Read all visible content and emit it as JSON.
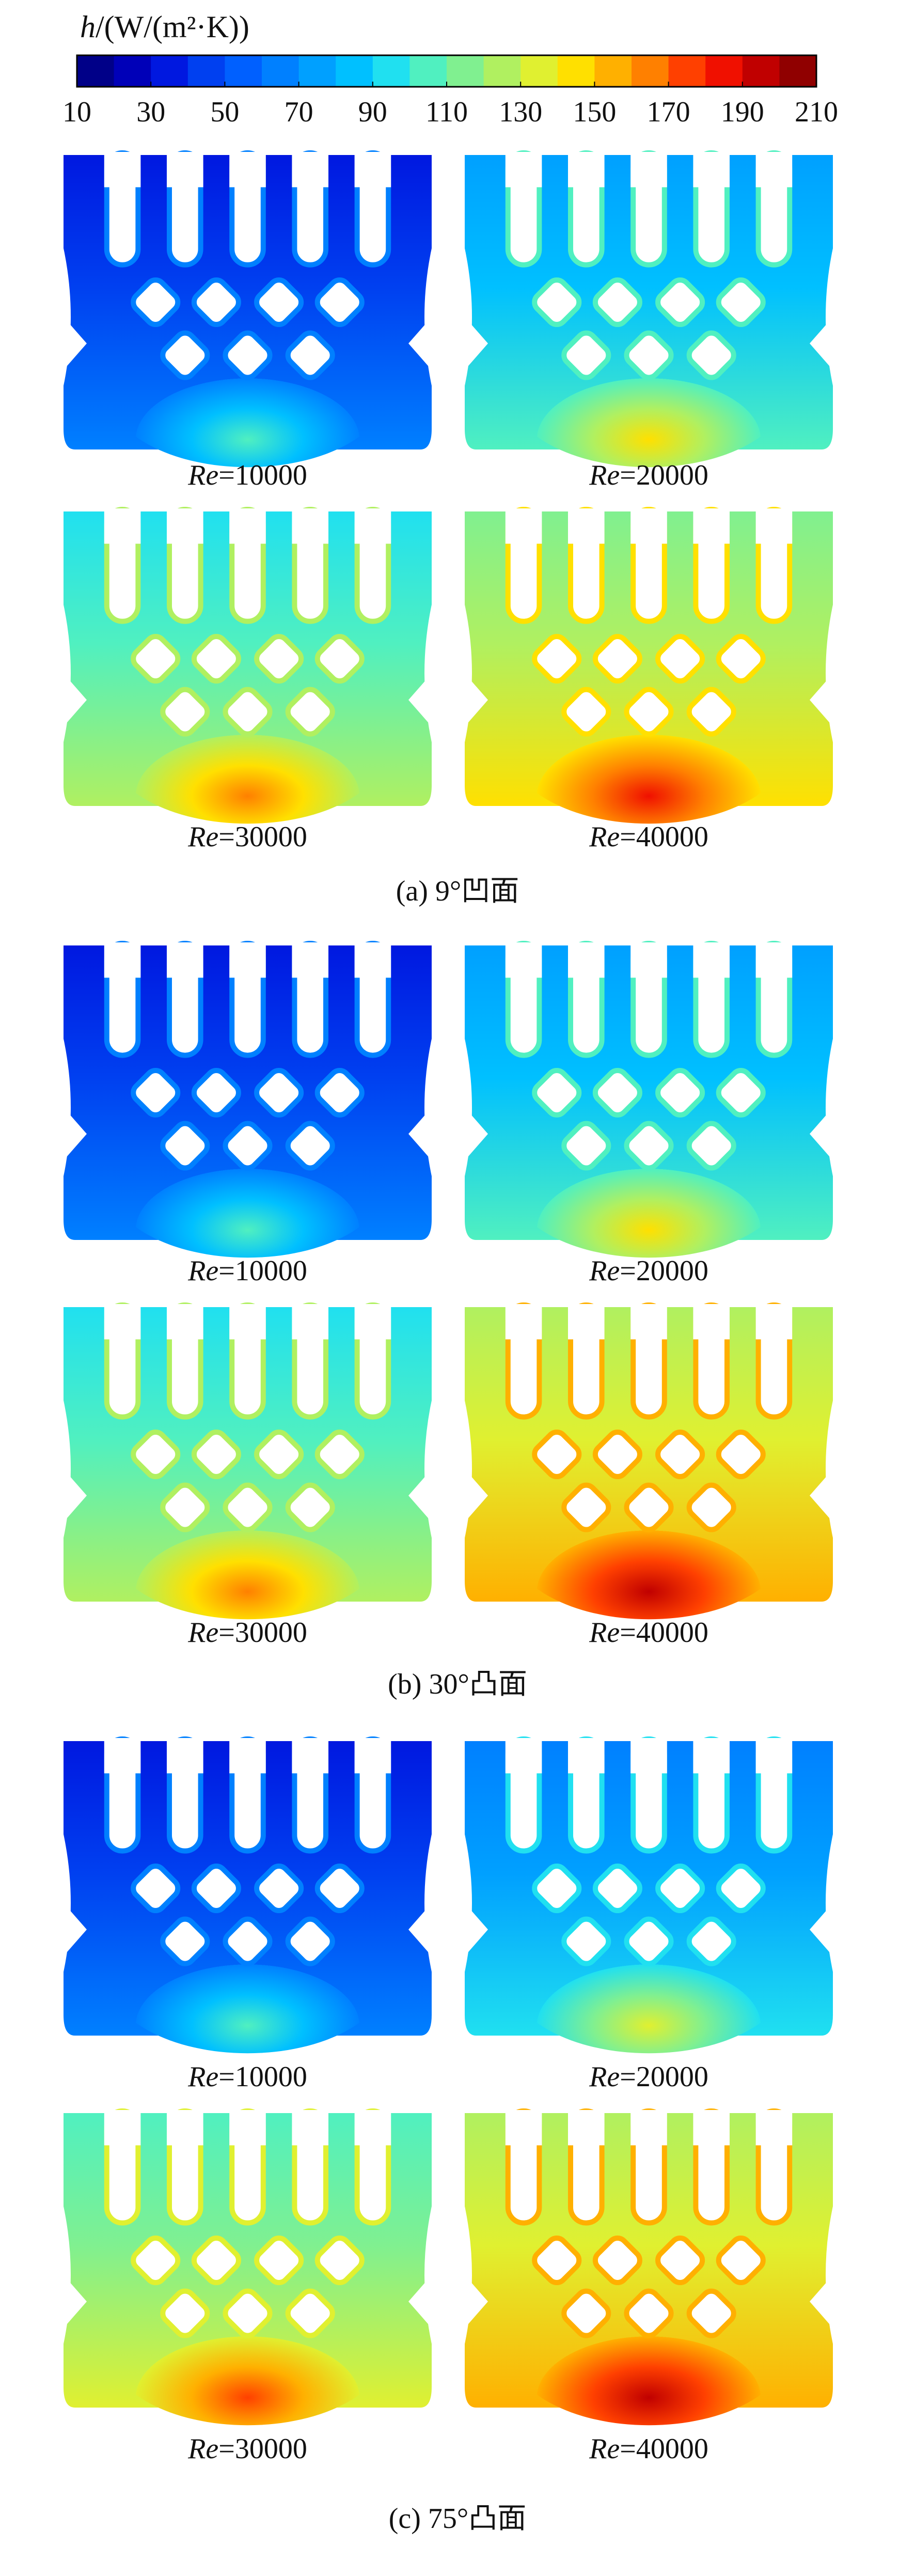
{
  "colorbar": {
    "label": "h/(W/(m²·K))",
    "range": [
      10,
      210
    ],
    "ticks": [
      10,
      30,
      50,
      70,
      90,
      110,
      130,
      150,
      170,
      190,
      210
    ],
    "colors": [
      "#000088",
      "#0000b8",
      "#0018e0",
      "#0040f0",
      "#0060ff",
      "#0080ff",
      "#00a0ff",
      "#00c0ff",
      "#20e0f0",
      "#50f0c0",
      "#80f090",
      "#b0f060",
      "#e0f030",
      "#ffe000",
      "#ffb000",
      "#ff8000",
      "#ff4000",
      "#f01000",
      "#c00000",
      "#900000"
    ]
  },
  "sections": [
    {
      "caption": "(a) 9°凹面",
      "panels": [
        {
          "label": "Re=10000"
        },
        {
          "label": "Re=20000"
        },
        {
          "label": "Re=30000"
        },
        {
          "label": "Re=40000"
        }
      ]
    },
    {
      "caption": "(b) 30°凸面",
      "panels": [
        {
          "label": "Re=10000"
        },
        {
          "label": "Re=20000"
        },
        {
          "label": "Re=30000"
        },
        {
          "label": "Re=40000"
        }
      ]
    },
    {
      "caption": "(c) 75°凸面",
      "panels": [
        {
          "label": "Re=10000"
        },
        {
          "label": "Re=20000"
        },
        {
          "label": "Re=30000"
        },
        {
          "label": "Re=40000"
        }
      ]
    }
  ]
}
